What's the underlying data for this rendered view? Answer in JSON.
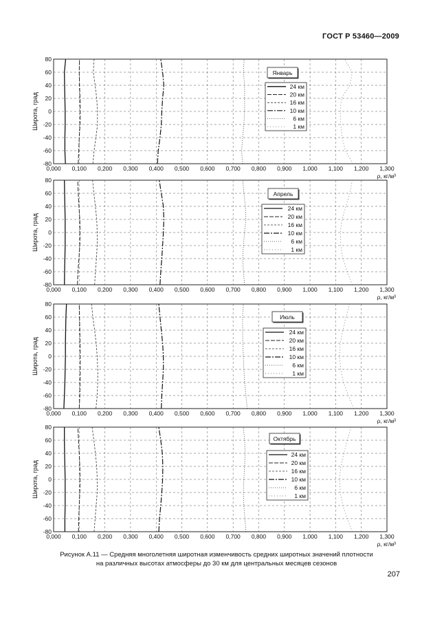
{
  "header": {
    "standard": "ГОСТ Р 53460—2009"
  },
  "caption": {
    "line1": "Рисунок  А.11 — Средняя многолетняя широтная изменчивость средних широтных значений плотности",
    "line2": "на различных высотах атмосферы до 30 км для центральных месяцев сезонов"
  },
  "page_number": "207",
  "chart_data": [
    {
      "type": "line",
      "season": "Январь",
      "ylabel": "Широта, град",
      "xlabel": "ρ, кг/м³",
      "xlim": [
        0,
        1.3
      ],
      "ylim": [
        -80,
        80
      ],
      "grid": true,
      "legend_position": "right",
      "x_ticks": [
        "0,000",
        "0,100",
        "0,200",
        "0,300",
        "0,400",
        "0,500",
        "0,600",
        "0,700",
        "0,800",
        "0,900",
        "1,000",
        "1,100",
        "1,200",
        "1,300"
      ],
      "y_ticks": [
        "80",
        "60",
        "40",
        "20",
        "0",
        "-20",
        "-40",
        "-60",
        "-80"
      ],
      "y": [
        -80,
        -60,
        -40,
        -20,
        0,
        20,
        40,
        60,
        80
      ],
      "series": [
        {
          "name": "24 км",
          "x": [
            0.046,
            0.044,
            0.044,
            0.045,
            0.045,
            0.044,
            0.043,
            0.042,
            0.047
          ]
        },
        {
          "name": "20 км",
          "x": [
            0.096,
            0.098,
            0.1,
            0.103,
            0.104,
            0.103,
            0.101,
            0.1,
            0.101
          ]
        },
        {
          "name": "16 км",
          "x": [
            0.153,
            0.158,
            0.165,
            0.171,
            0.171,
            0.168,
            0.162,
            0.155,
            0.158
          ]
        },
        {
          "name": "10 км",
          "x": [
            0.405,
            0.408,
            0.415,
            0.42,
            0.422,
            0.425,
            0.43,
            0.425,
            0.418
          ]
        },
        {
          "name": "6 км",
          "x": [
            0.737,
            0.733,
            0.737,
            0.742,
            0.745,
            0.745,
            0.745,
            0.74,
            0.743
          ]
        },
        {
          "name": "1 км",
          "x": [
            1.167,
            1.138,
            1.125,
            1.12,
            1.118,
            1.122,
            1.155,
            1.165,
            1.135
          ]
        }
      ]
    },
    {
      "type": "line",
      "season": "Апрель",
      "ylabel": "Широта, град",
      "xlabel": "ρ, кг/м³",
      "xlim": [
        0,
        1.3
      ],
      "ylim": [
        -80,
        80
      ],
      "grid": true,
      "legend_position": "right",
      "x_ticks": [
        "0,000",
        "0,100",
        "0,200",
        "0,300",
        "0,400",
        "0,500",
        "0,600",
        "0,700",
        "0,800",
        "0,900",
        "1,000",
        "1,100",
        "1,200",
        "1,300"
      ],
      "y_ticks": [
        "80",
        "60",
        "40",
        "20",
        "0",
        "-20",
        "-40",
        "-60",
        "-80"
      ],
      "y": [
        -80,
        -60,
        -40,
        -20,
        0,
        20,
        40,
        60,
        80
      ],
      "series": [
        {
          "name": "24 км",
          "x": [
            0.042,
            0.043,
            0.044,
            0.045,
            0.045,
            0.045,
            0.044,
            0.043,
            0.042
          ]
        },
        {
          "name": "20 км",
          "x": [
            0.093,
            0.095,
            0.099,
            0.102,
            0.103,
            0.102,
            0.099,
            0.096,
            0.094
          ]
        },
        {
          "name": "16 км",
          "x": [
            0.16,
            0.163,
            0.167,
            0.17,
            0.17,
            0.168,
            0.163,
            0.157,
            0.152
          ]
        },
        {
          "name": "10 км",
          "x": [
            0.415,
            0.418,
            0.422,
            0.425,
            0.428,
            0.43,
            0.428,
            0.42,
            0.412
          ]
        },
        {
          "name": "6 км",
          "x": [
            0.745,
            0.74,
            0.738,
            0.74,
            0.745,
            0.75,
            0.748,
            0.742,
            0.738
          ]
        },
        {
          "name": "1 км",
          "x": [
            1.165,
            1.145,
            1.128,
            1.12,
            1.118,
            1.125,
            1.14,
            1.155,
            1.165
          ]
        }
      ]
    },
    {
      "type": "line",
      "season": "Июль",
      "ylabel": "Широта, град",
      "xlabel": "ρ, кг/м³",
      "xlim": [
        0,
        1.3
      ],
      "ylim": [
        -80,
        80
      ],
      "grid": true,
      "legend_position": "right",
      "x_ticks": [
        "0,000",
        "0,100",
        "0,200",
        "0,300",
        "0,400",
        "0,500",
        "0,600",
        "0,700",
        "0,800",
        "0,900",
        "1,000",
        "1,100",
        "1,200",
        "1,300"
      ],
      "y_ticks": [
        "80",
        "60",
        "40",
        "20",
        "0",
        "-20",
        "-40",
        "-60",
        "-80"
      ],
      "y": [
        -80,
        -60,
        -40,
        -20,
        0,
        20,
        40,
        60,
        80
      ],
      "series": [
        {
          "name": "24 км",
          "x": [
            0.04,
            0.042,
            0.044,
            0.045,
            0.046,
            0.046,
            0.047,
            0.048,
            0.05
          ]
        },
        {
          "name": "20 км",
          "x": [
            0.1,
            0.102,
            0.103,
            0.104,
            0.104,
            0.103,
            0.102,
            0.101,
            0.1
          ]
        },
        {
          "name": "16 км",
          "x": [
            0.165,
            0.17,
            0.172,
            0.172,
            0.17,
            0.166,
            0.16,
            0.153,
            0.148
          ]
        },
        {
          "name": "10 км",
          "x": [
            0.42,
            0.422,
            0.425,
            0.428,
            0.428,
            0.425,
            0.42,
            0.415,
            0.41
          ]
        },
        {
          "name": "6 км",
          "x": [
            0.755,
            0.75,
            0.745,
            0.742,
            0.74,
            0.738,
            0.737,
            0.737,
            0.74
          ]
        },
        {
          "name": "1 км",
          "x": [
            1.17,
            1.15,
            1.13,
            1.12,
            1.115,
            1.118,
            1.128,
            1.14,
            1.155
          ]
        }
      ]
    },
    {
      "type": "line",
      "season": "Октябрь",
      "ylabel": "Широта, град",
      "xlabel": "ρ, кг/м³",
      "xlim": [
        0,
        1.3
      ],
      "ylim": [
        -80,
        80
      ],
      "grid": true,
      "legend_position": "right",
      "x_ticks": [
        "0,000",
        "0,100",
        "0,200",
        "0,300",
        "0,400",
        "0,500",
        "0,600",
        "0,700",
        "0,800",
        "0,900",
        "1,000",
        "1,100",
        "1,200",
        "1,300"
      ],
      "y_ticks": [
        "80",
        "60",
        "40",
        "20",
        "0",
        "-20",
        "-40",
        "-60",
        "-80"
      ],
      "y": [
        -80,
        -60,
        -40,
        -20,
        0,
        20,
        40,
        60,
        80
      ],
      "series": [
        {
          "name": "24 км",
          "x": [
            0.044,
            0.044,
            0.045,
            0.045,
            0.045,
            0.044,
            0.043,
            0.042,
            0.042
          ]
        },
        {
          "name": "20 км",
          "x": [
            0.097,
            0.098,
            0.1,
            0.102,
            0.103,
            0.102,
            0.1,
            0.097,
            0.095
          ]
        },
        {
          "name": "16 км",
          "x": [
            0.158,
            0.162,
            0.166,
            0.17,
            0.17,
            0.168,
            0.163,
            0.157,
            0.15
          ]
        },
        {
          "name": "10 км",
          "x": [
            0.41,
            0.413,
            0.418,
            0.422,
            0.425,
            0.426,
            0.424,
            0.418,
            0.41
          ]
        },
        {
          "name": "6 км",
          "x": [
            0.75,
            0.746,
            0.742,
            0.74,
            0.742,
            0.745,
            0.747,
            0.745,
            0.74
          ]
        },
        {
          "name": "1 км",
          "x": [
            1.165,
            1.145,
            1.128,
            1.118,
            1.115,
            1.12,
            1.132,
            1.145,
            1.16
          ]
        }
      ]
    }
  ]
}
